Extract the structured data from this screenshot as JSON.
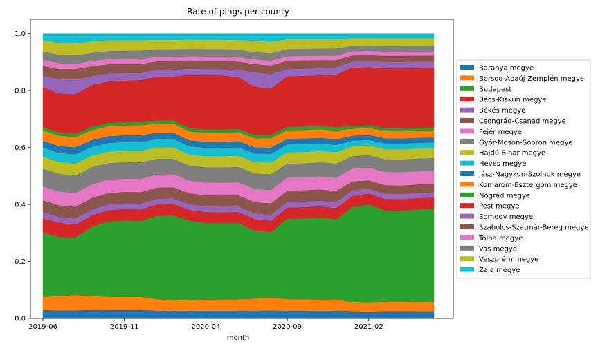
{
  "chart_data": {
    "type": "area",
    "stacked": true,
    "title": "Rate of pings per county",
    "xlabel": "month",
    "ylabel": "",
    "ylim": [
      0,
      1.05
    ],
    "yticks": [
      0.0,
      0.2,
      0.4,
      0.6,
      0.8,
      1.0
    ],
    "ytick_labels": [
      "0.0",
      "0.2",
      "0.4",
      "0.6",
      "0.8",
      "1.0"
    ],
    "x": [
      "2019-06",
      "2019-07",
      "2019-08",
      "2019-09",
      "2019-10",
      "2019-11",
      "2019-12",
      "2020-01",
      "2020-02",
      "2020-03",
      "2020-04",
      "2020-05",
      "2020-06",
      "2020-07",
      "2020-08",
      "2020-09",
      "2020-10",
      "2020-11",
      "2020-12",
      "2021-01",
      "2021-02",
      "2021-03",
      "2021-04",
      "2021-05",
      "2021-06"
    ],
    "xtick_labels": [
      "2019-06",
      "2019-11",
      "2020-04",
      "2020-09",
      "2021-02"
    ],
    "legend_position": "center-right",
    "series": [
      {
        "name": "Baranya megye",
        "color": "#1f77b4",
        "values": [
          0.03,
          0.028,
          0.028,
          0.03,
          0.03,
          0.03,
          0.03,
          0.028,
          0.027,
          0.028,
          0.028,
          0.028,
          0.028,
          0.028,
          0.028,
          0.028,
          0.028,
          0.027,
          0.027,
          0.024,
          0.023,
          0.024,
          0.024,
          0.024,
          0.024
        ]
      },
      {
        "name": "Borsod-Abaúj-Zemplén megye",
        "color": "#ff7f0e",
        "values": [
          0.046,
          0.05,
          0.052,
          0.048,
          0.046,
          0.045,
          0.045,
          0.04,
          0.038,
          0.038,
          0.04,
          0.039,
          0.04,
          0.042,
          0.045,
          0.04,
          0.04,
          0.04,
          0.04,
          0.034,
          0.033,
          0.034,
          0.034,
          0.034,
          0.033
        ]
      },
      {
        "name": "Budapest",
        "color": "#2ca02c",
        "values": [
          0.225,
          0.205,
          0.195,
          0.24,
          0.262,
          0.267,
          0.263,
          0.295,
          0.3,
          0.29,
          0.275,
          0.275,
          0.272,
          0.24,
          0.225,
          0.285,
          0.287,
          0.29,
          0.28,
          0.343,
          0.355,
          0.32,
          0.318,
          0.325,
          0.33
        ]
      },
      {
        "name": "Bács-Kiskun megye",
        "color": "#d62728",
        "values": [
          0.05,
          0.05,
          0.045,
          0.04,
          0.04,
          0.04,
          0.04,
          0.04,
          0.04,
          0.04,
          0.04,
          0.04,
          0.04,
          0.04,
          0.04,
          0.04,
          0.04,
          0.04,
          0.04,
          0.04,
          0.04,
          0.04,
          0.04,
          0.04,
          0.04
        ]
      },
      {
        "name": "Békés megye",
        "color": "#9467bd",
        "values": [
          0.022,
          0.02,
          0.02,
          0.02,
          0.02,
          0.02,
          0.02,
          0.02,
          0.02,
          0.02,
          0.02,
          0.02,
          0.02,
          0.02,
          0.02,
          0.02,
          0.02,
          0.02,
          0.02,
          0.02,
          0.018,
          0.018,
          0.018,
          0.018,
          0.018
        ]
      },
      {
        "name": "Csongrád-Csanád megye",
        "color": "#8c564b",
        "values": [
          0.042,
          0.04,
          0.04,
          0.04,
          0.04,
          0.04,
          0.04,
          0.04,
          0.04,
          0.04,
          0.04,
          0.04,
          0.04,
          0.04,
          0.04,
          0.04,
          0.04,
          0.04,
          0.04,
          0.032,
          0.03,
          0.03,
          0.03,
          0.03,
          0.03
        ]
      },
      {
        "name": "Fejér megye",
        "color": "#e377c2",
        "values": [
          0.048,
          0.048,
          0.047,
          0.047,
          0.047,
          0.046,
          0.046,
          0.046,
          0.046,
          0.046,
          0.046,
          0.046,
          0.046,
          0.046,
          0.046,
          0.046,
          0.046,
          0.046,
          0.046,
          0.046,
          0.046,
          0.046,
          0.046,
          0.046,
          0.046
        ]
      },
      {
        "name": "Győr-Moson-Sopron megye",
        "color": "#7f7f7f",
        "values": [
          0.063,
          0.062,
          0.06,
          0.06,
          0.058,
          0.058,
          0.058,
          0.056,
          0.055,
          0.055,
          0.055,
          0.055,
          0.055,
          0.055,
          0.055,
          0.05,
          0.05,
          0.05,
          0.05,
          0.045,
          0.045,
          0.045,
          0.045,
          0.045,
          0.045
        ]
      },
      {
        "name": "Hajdú-Bihar megye",
        "color": "#bcbd22",
        "values": [
          0.042,
          0.04,
          0.04,
          0.04,
          0.04,
          0.04,
          0.04,
          0.04,
          0.04,
          0.04,
          0.04,
          0.04,
          0.04,
          0.04,
          0.04,
          0.04,
          0.04,
          0.04,
          0.04,
          0.035,
          0.035,
          0.035,
          0.035,
          0.035,
          0.035
        ]
      },
      {
        "name": "Heves megye",
        "color": "#17becf",
        "values": [
          0.032,
          0.032,
          0.032,
          0.03,
          0.03,
          0.03,
          0.03,
          0.03,
          0.03,
          0.03,
          0.03,
          0.03,
          0.03,
          0.03,
          0.03,
          0.028,
          0.028,
          0.027,
          0.025,
          0.02,
          0.02,
          0.02,
          0.02,
          0.02,
          0.02
        ]
      },
      {
        "name": "Jász-Nagykun-Szolnok megye",
        "color": "#1f77b4",
        "values": [
          0.024,
          0.024,
          0.024,
          0.024,
          0.024,
          0.024,
          0.024,
          0.022,
          0.022,
          0.022,
          0.022,
          0.022,
          0.022,
          0.022,
          0.022,
          0.02,
          0.02,
          0.02,
          0.02,
          0.018,
          0.018,
          0.018,
          0.018,
          0.018,
          0.018
        ]
      },
      {
        "name": "Komárom-Esztergom megye",
        "color": "#ff7f0e",
        "values": [
          0.036,
          0.036,
          0.034,
          0.034,
          0.034,
          0.034,
          0.034,
          0.032,
          0.032,
          0.032,
          0.032,
          0.032,
          0.032,
          0.032,
          0.032,
          0.03,
          0.03,
          0.03,
          0.03,
          0.025,
          0.025,
          0.025,
          0.025,
          0.025,
          0.025
        ]
      },
      {
        "name": "Nógrád megye",
        "color": "#2ca02c",
        "values": [
          0.012,
          0.012,
          0.012,
          0.012,
          0.012,
          0.012,
          0.012,
          0.012,
          0.012,
          0.012,
          0.012,
          0.012,
          0.012,
          0.012,
          0.012,
          0.012,
          0.012,
          0.012,
          0.012,
          0.01,
          0.01,
          0.01,
          0.01,
          0.01,
          0.01
        ]
      },
      {
        "name": "Pest megye",
        "color": "#d62728",
        "values": [
          0.14,
          0.135,
          0.135,
          0.145,
          0.145,
          0.145,
          0.145,
          0.155,
          0.155,
          0.195,
          0.195,
          0.195,
          0.185,
          0.17,
          0.16,
          0.18,
          0.18,
          0.18,
          0.185,
          0.21,
          0.21,
          0.21,
          0.21,
          0.21,
          0.21
        ]
      },
      {
        "name": "Somogy megye",
        "color": "#9467bd",
        "values": [
          0.04,
          0.05,
          0.05,
          0.03,
          0.028,
          0.026,
          0.024,
          0.024,
          0.024,
          0.022,
          0.022,
          0.022,
          0.025,
          0.05,
          0.05,
          0.025,
          0.025,
          0.025,
          0.025,
          0.022,
          0.022,
          0.022,
          0.022,
          0.022,
          0.022
        ]
      },
      {
        "name": "Szabolcs-Szatmár-Bereg megye",
        "color": "#8c564b",
        "values": [
          0.035,
          0.035,
          0.035,
          0.035,
          0.032,
          0.032,
          0.032,
          0.03,
          0.03,
          0.03,
          0.03,
          0.03,
          0.03,
          0.03,
          0.03,
          0.03,
          0.03,
          0.028,
          0.025,
          0.022,
          0.022,
          0.022,
          0.022,
          0.022,
          0.022
        ]
      },
      {
        "name": "Tolna megye",
        "color": "#e377c2",
        "values": [
          0.02,
          0.02,
          0.018,
          0.018,
          0.018,
          0.018,
          0.018,
          0.016,
          0.016,
          0.016,
          0.016,
          0.016,
          0.016,
          0.016,
          0.016,
          0.016,
          0.016,
          0.016,
          0.016,
          0.014,
          0.014,
          0.014,
          0.014,
          0.014,
          0.014
        ]
      },
      {
        "name": "Vas megye",
        "color": "#7f7f7f",
        "values": [
          0.03,
          0.03,
          0.03,
          0.028,
          0.028,
          0.028,
          0.028,
          0.026,
          0.026,
          0.026,
          0.026,
          0.026,
          0.026,
          0.026,
          0.026,
          0.025,
          0.025,
          0.025,
          0.025,
          0.02,
          0.02,
          0.02,
          0.02,
          0.02,
          0.02
        ]
      },
      {
        "name": "Veszprém megye",
        "color": "#bcbd22",
        "values": [
          0.04,
          0.04,
          0.04,
          0.04,
          0.038,
          0.037,
          0.036,
          0.034,
          0.034,
          0.034,
          0.034,
          0.034,
          0.035,
          0.04,
          0.04,
          0.035,
          0.034,
          0.033,
          0.032,
          0.028,
          0.027,
          0.027,
          0.027,
          0.027,
          0.027
        ]
      },
      {
        "name": "Zala megye",
        "color": "#17becf",
        "values": [
          0.023,
          0.033,
          0.033,
          0.027,
          0.023,
          0.023,
          0.023,
          0.022,
          0.022,
          0.022,
          0.022,
          0.022,
          0.023,
          0.025,
          0.028,
          0.02,
          0.02,
          0.02,
          0.02,
          0.016,
          0.016,
          0.016,
          0.016,
          0.016,
          0.016
        ]
      }
    ]
  }
}
